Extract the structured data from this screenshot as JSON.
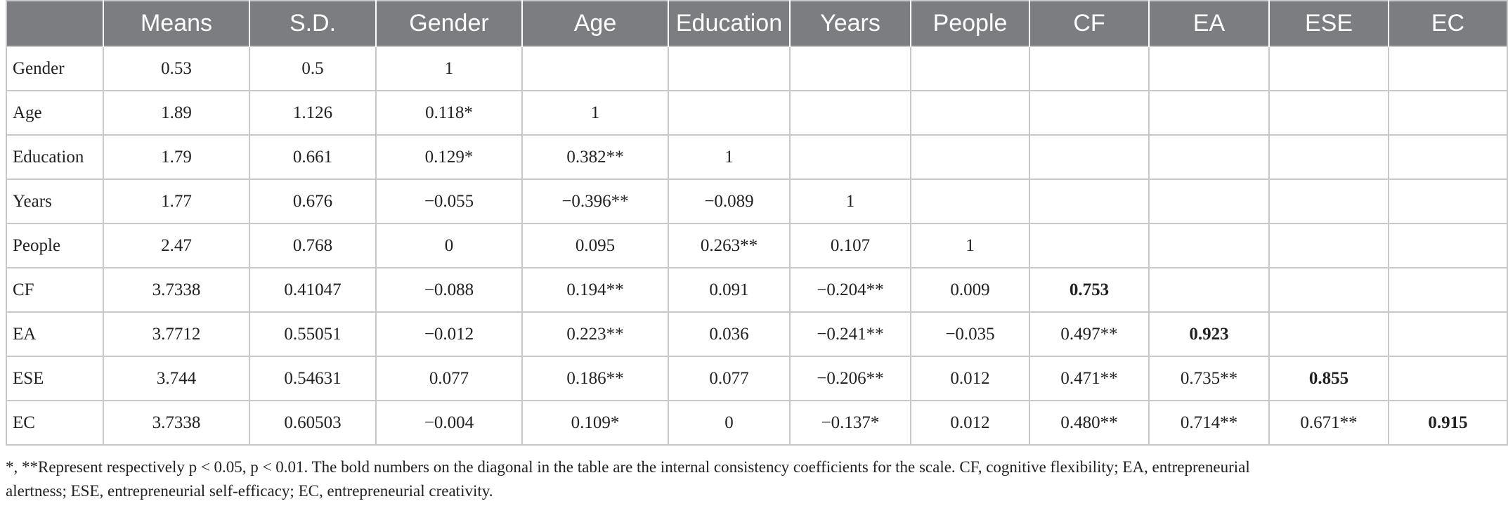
{
  "table": {
    "headers": [
      "",
      "Means",
      "S.D.",
      "Gender",
      "Age",
      "Education",
      "Years",
      "People",
      "CF",
      "EA",
      "ESE",
      "EC"
    ],
    "rows": [
      {
        "label": "Gender",
        "cells": [
          "0.53",
          "0.5",
          "1",
          "",
          "",
          "",
          "",
          "",
          "",
          "",
          ""
        ]
      },
      {
        "label": "Age",
        "cells": [
          "1.89",
          "1.126",
          "0.118*",
          "1",
          "",
          "",
          "",
          "",
          "",
          "",
          ""
        ]
      },
      {
        "label": "Education",
        "cells": [
          "1.79",
          "0.661",
          "0.129*",
          "0.382**",
          "1",
          "",
          "",
          "",
          "",
          "",
          ""
        ]
      },
      {
        "label": "Years",
        "cells": [
          "1.77",
          "0.676",
          "−0.055",
          "−0.396**",
          "−0.089",
          "1",
          "",
          "",
          "",
          "",
          ""
        ]
      },
      {
        "label": "People",
        "cells": [
          "2.47",
          "0.768",
          "0",
          "0.095",
          "0.263**",
          "0.107",
          "1",
          "",
          "",
          "",
          ""
        ]
      },
      {
        "label": "CF",
        "cells": [
          "3.7338",
          "0.41047",
          "−0.088",
          "0.194**",
          "0.091",
          "−0.204**",
          "0.009",
          "0.753",
          "",
          "",
          ""
        ]
      },
      {
        "label": "EA",
        "cells": [
          "3.7712",
          "0.55051",
          "−0.012",
          "0.223**",
          "0.036",
          "−0.241**",
          "−0.035",
          "0.497**",
          "0.923",
          "",
          ""
        ]
      },
      {
        "label": "ESE",
        "cells": [
          "3.744",
          "0.54631",
          "0.077",
          "0.186**",
          "0.077",
          "−0.206**",
          "0.012",
          "0.471**",
          "0.735**",
          "0.855",
          ""
        ]
      },
      {
        "label": "EC",
        "cells": [
          "3.7338",
          "0.60503",
          "−0.004",
          "0.109*",
          "0",
          "−0.137*",
          "0.012",
          "0.480**",
          "0.714**",
          "0.671**",
          "0.915"
        ]
      }
    ],
    "bold_cells": [
      "5-7",
      "6-8",
      "7-9",
      "8-10"
    ]
  },
  "note": {
    "line1": "*, **Represent respectively p < 0.05, p < 0.01. The bold numbers on the diagonal in the table are the internal consistency coefficients for the scale. CF, cognitive flexibility; EA, entrepreneurial",
    "line2": "alertness; ESE, entrepreneurial self-efficacy; EC, entrepreneurial creativity."
  }
}
